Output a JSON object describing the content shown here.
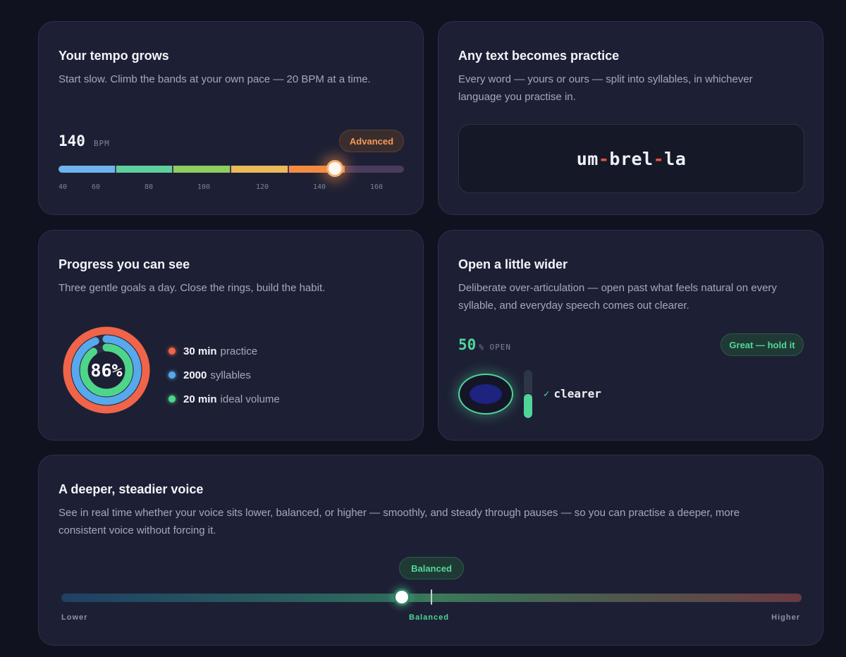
{
  "tempo": {
    "title": "Your tempo grows",
    "description": "Start slow. Climb the bands at your own pace — 20 BPM at a time.",
    "bpm_value": "140",
    "bpm_unit": "BPM",
    "level_badge": "Advanced",
    "current_bpm": 140,
    "min_bpm": 40,
    "max_bpm": 160,
    "ticks": [
      "40",
      "60",
      "80",
      "100",
      "120",
      "140",
      "160"
    ],
    "band_colors": [
      "#6eb3ec",
      "#5fcf9d",
      "#8dce5e",
      "#e9b95a",
      "#f38b42"
    ],
    "track_color": "#4a3b5e",
    "accent": "#f49a58"
  },
  "syllables": {
    "title": "Any text becomes practice",
    "description": "Every word — yours or ours — split into syllables, in whichever language you practise in.",
    "parts": [
      "um",
      "brel",
      "la"
    ],
    "separator": "-",
    "separator_color": "#e4563e"
  },
  "progress": {
    "title": "Progress you can see",
    "description": "Three gentle goals a day. Close the rings, build the habit.",
    "percent_label": "86%",
    "goals": [
      {
        "value": "30 min",
        "label": "practice",
        "color": "#f0644a",
        "fraction": 1.0
      },
      {
        "value": "2000",
        "label": "syllables",
        "color": "#57a8ec",
        "fraction": 0.94
      },
      {
        "value": "20 min",
        "label": "ideal volume",
        "color": "#4fd58a",
        "fraction": 0.9
      }
    ]
  },
  "articulation": {
    "title": "Open a little wider",
    "description": "Deliberate over-articulation — open past what feels natural on every syllable, and everyday speech comes out clearer.",
    "open_value": "50",
    "open_unit": "% OPEN",
    "status_badge": "Great — hold it",
    "meter_fraction": 0.5,
    "check_symbol": "✓",
    "result_word": "clearer",
    "accent": "#4fd59a"
  },
  "voice": {
    "title": "A deeper, steadier voice",
    "description": "See in real time whether your voice sits lower, balanced, or higher — smoothly, and steady through pauses — so you can practise a deeper, more consistent voice without forcing it.",
    "badge": "Balanced",
    "label_low": "Lower",
    "label_mid": "Balanced",
    "label_high": "Higher",
    "position_fraction": 0.46,
    "accent": "#52d79a"
  }
}
